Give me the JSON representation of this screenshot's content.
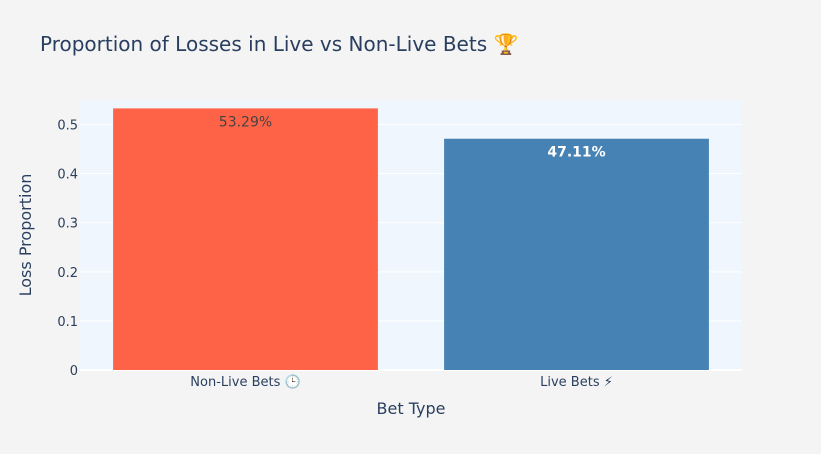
{
  "chart_data": {
    "type": "bar",
    "title": "Proportion of Losses in Live vs Non-Live Bets 🏆",
    "xlabel": "Bet Type",
    "ylabel": "Loss Proportion",
    "categories": [
      "Non-Live Bets 🕒",
      "Live Bets ⚡"
    ],
    "values": [
      0.5329,
      0.4711
    ],
    "data_labels": [
      "53.29%",
      "47.11%"
    ],
    "bar_colors": [
      "#ff6347",
      "#4682b4"
    ],
    "ylim": [
      0,
      0.55
    ],
    "yticks": [
      0,
      0.1,
      0.2,
      0.3,
      0.4,
      0.5
    ],
    "ytick_labels": [
      "0",
      "0.1",
      "0.2",
      "0.3",
      "0.4",
      "0.5"
    ],
    "grid": true,
    "legend": "none"
  },
  "colors": {
    "page_background": "#f4f4f4",
    "plot_background": "#eff6fe",
    "grid": "#ffffff",
    "text": "#2a3f5f"
  }
}
